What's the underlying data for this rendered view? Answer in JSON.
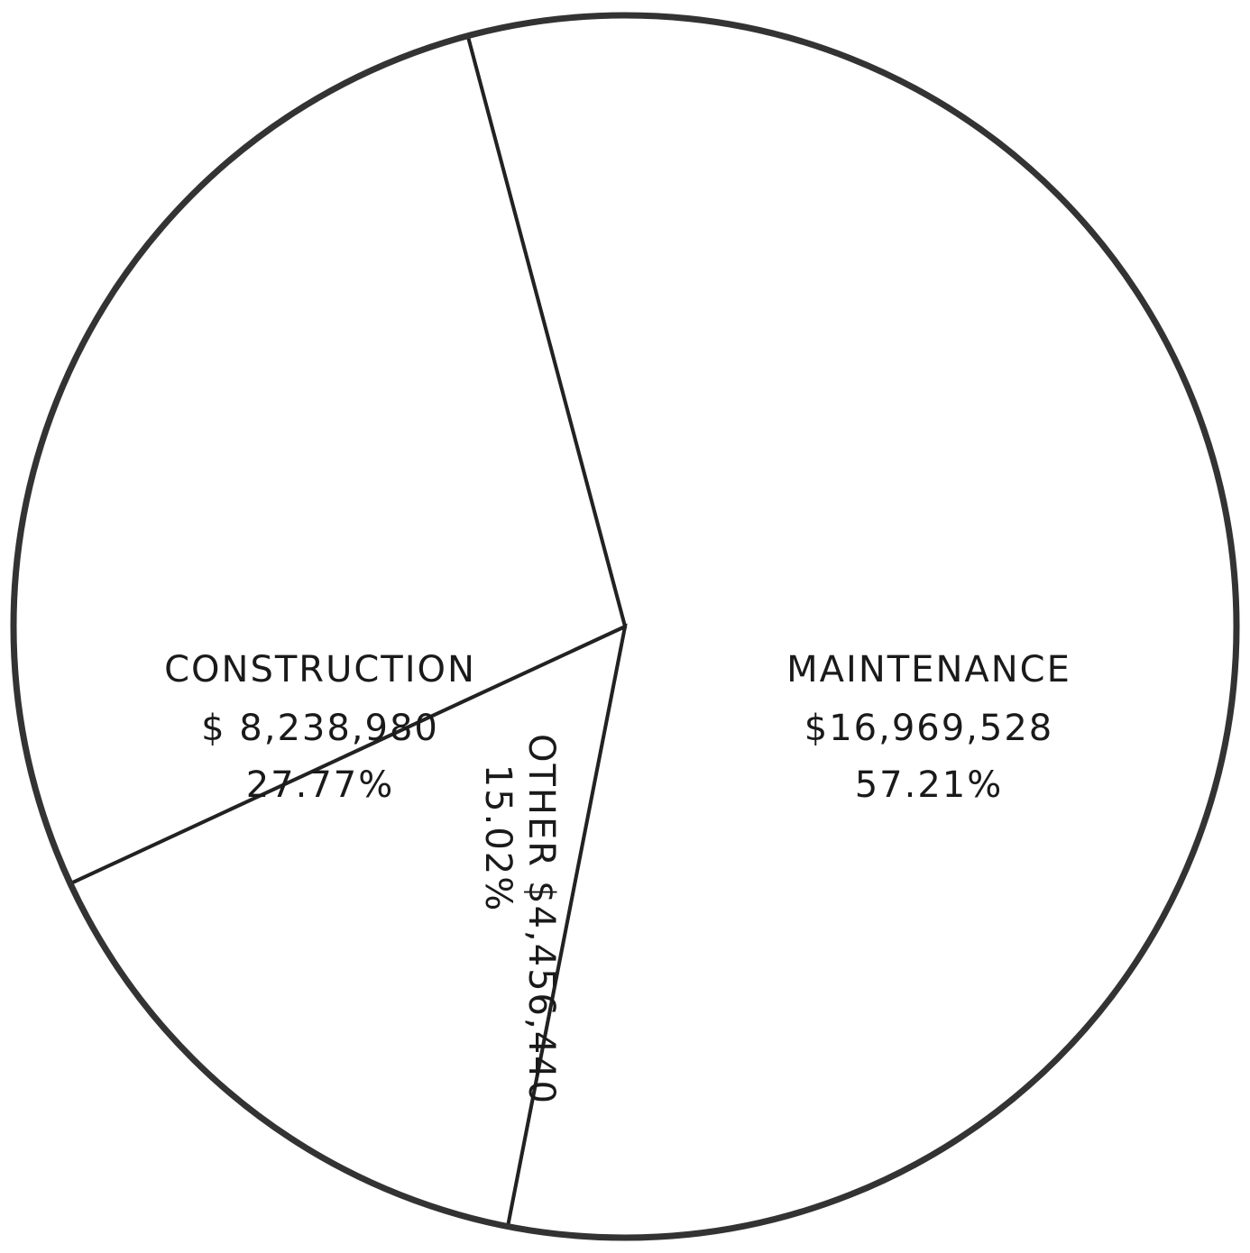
{
  "chart_data": {
    "type": "pie",
    "categories": [
      "MAINTENANCE",
      "OTHER",
      "CONSTRUCTION"
    ],
    "values": [
      57.21,
      15.02,
      27.77
    ],
    "value_labels": [
      "57.21%",
      "15.02%",
      "27.77%"
    ],
    "amounts": [
      16969528,
      4456440,
      8238980
    ],
    "amount_labels": [
      "$16,969,528",
      "$4,456,440",
      "$ 8,238,980"
    ],
    "color": "#ffffff"
  }
}
